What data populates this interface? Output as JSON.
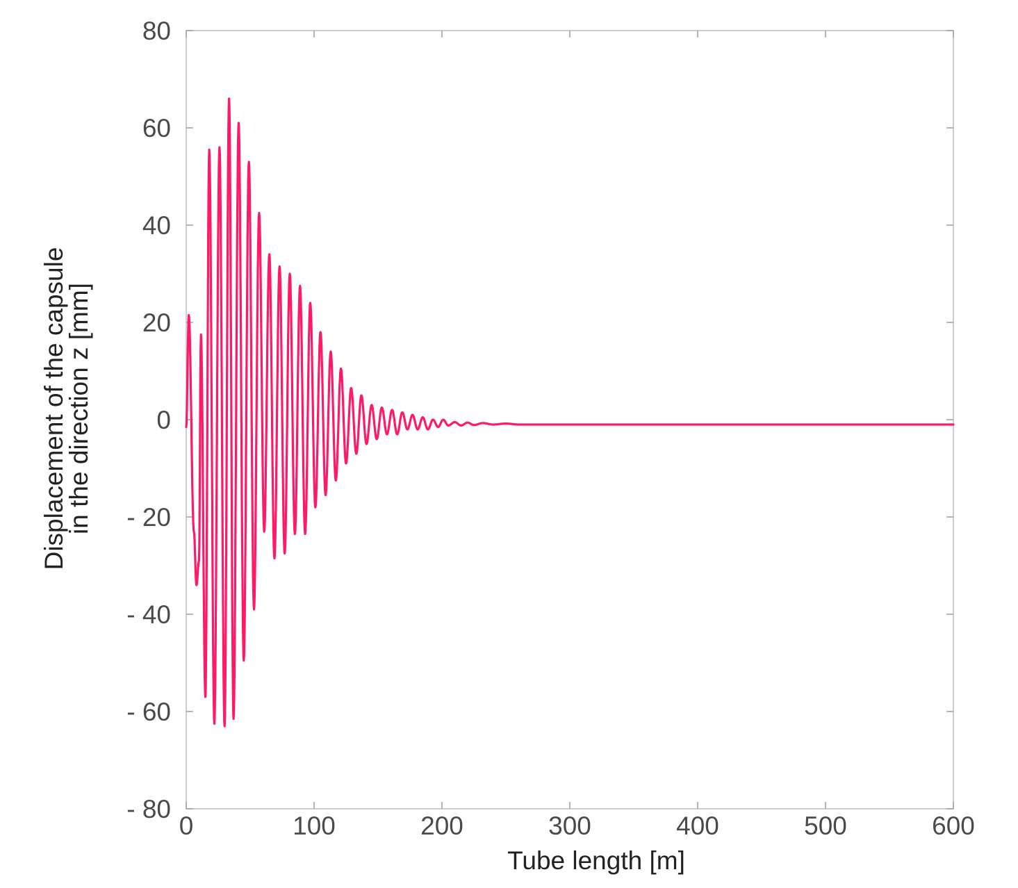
{
  "chart_data": {
    "type": "line",
    "xlabel": "Tube length [m]",
    "ylabel_lines": [
      "Displacement of the capsule",
      "in the direction z [mm]"
    ],
    "xlim": [
      0,
      600
    ],
    "ylim": [
      -80,
      80
    ],
    "x_ticks": [
      0,
      100,
      200,
      300,
      400,
      500,
      600
    ],
    "x_tick_labels": [
      "0",
      "100",
      "200",
      "300",
      "400",
      "500",
      "600"
    ],
    "y_ticks": [
      80,
      60,
      40,
      20,
      0,
      -20,
      -40,
      -60,
      -80
    ],
    "y_tick_labels": [
      "80",
      "60",
      "40",
      "20",
      "0",
      "- 20",
      "- 40",
      "- 60",
      "- 80"
    ],
    "grid": false,
    "line_color": "#ff1a66",
    "series": [
      {
        "peaks": [
          [
            0,
            -1.5
          ],
          [
            2,
            21.5
          ],
          [
            6,
            -23
          ],
          [
            8,
            -34
          ],
          [
            10,
            -29
          ],
          [
            11.5,
            17.5
          ],
          [
            15,
            -57
          ],
          [
            18,
            55.5
          ],
          [
            22,
            -62.5
          ],
          [
            26,
            56
          ],
          [
            30,
            -63
          ],
          [
            33.5,
            66
          ],
          [
            37,
            -61.5
          ],
          [
            41,
            61
          ],
          [
            45,
            -49.5
          ],
          [
            49,
            53
          ],
          [
            53,
            -39
          ],
          [
            57,
            42.5
          ],
          [
            61,
            -23
          ],
          [
            65,
            34
          ],
          [
            69,
            -28.5
          ],
          [
            73,
            31.5
          ],
          [
            77,
            -27.5
          ],
          [
            81,
            30
          ],
          [
            85,
            -23.5
          ],
          [
            89,
            27.5
          ],
          [
            93,
            -23.5
          ],
          [
            97,
            24
          ],
          [
            101,
            -18
          ],
          [
            105,
            18
          ],
          [
            109,
            -15.5
          ],
          [
            113,
            14
          ],
          [
            117,
            -12.5
          ],
          [
            121,
            10.5
          ],
          [
            125,
            -9
          ],
          [
            129,
            6.5
          ],
          [
            133,
            -7
          ],
          [
            137,
            5
          ],
          [
            141,
            -5
          ],
          [
            145,
            3
          ],
          [
            149,
            -4
          ],
          [
            153,
            2.5
          ],
          [
            157,
            -3
          ],
          [
            161,
            2
          ],
          [
            165,
            -3
          ],
          [
            169,
            1.5
          ],
          [
            173,
            -2
          ],
          [
            177,
            1
          ],
          [
            181,
            -2
          ],
          [
            185,
            0.5
          ],
          [
            189,
            -2
          ],
          [
            193,
            0
          ],
          [
            197,
            -1.5
          ],
          [
            201,
            0
          ],
          [
            205,
            -1.2
          ],
          [
            210,
            -0.5
          ],
          [
            215,
            -1.2
          ],
          [
            220,
            -0.6
          ],
          [
            225,
            -1.1
          ],
          [
            232,
            -0.7
          ],
          [
            240,
            -1.0
          ],
          [
            250,
            -0.8
          ],
          [
            260,
            -1.0
          ],
          [
            600,
            -1.0
          ]
        ]
      }
    ]
  }
}
